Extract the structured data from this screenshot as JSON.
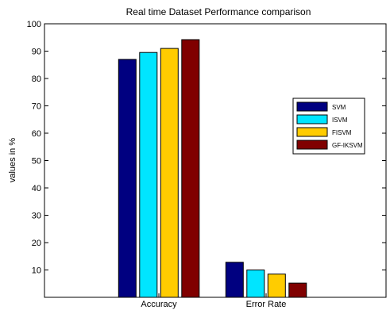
{
  "chart_data": {
    "type": "bar",
    "title": "Real time Dataset Performance comparison",
    "xlabel": "",
    "ylabel": "values in %",
    "ylim": [
      0,
      100
    ],
    "yticks": [
      10,
      20,
      30,
      40,
      50,
      60,
      70,
      80,
      90,
      100
    ],
    "categories": [
      "Accuracy",
      "Error Rate"
    ],
    "series": [
      {
        "name": "SVM",
        "color": "#000080",
        "values": [
          87,
          12.8
        ]
      },
      {
        "name": "ISVM",
        "color": "#00e5ff",
        "values": [
          89.5,
          10
        ]
      },
      {
        "name": "FISVM",
        "color": "#ffcc00",
        "values": [
          91,
          8.5
        ]
      },
      {
        "name": "GF-IKSVM",
        "color": "#800000",
        "values": [
          94.2,
          5.2
        ]
      }
    ],
    "grid": false,
    "legend": "right"
  }
}
